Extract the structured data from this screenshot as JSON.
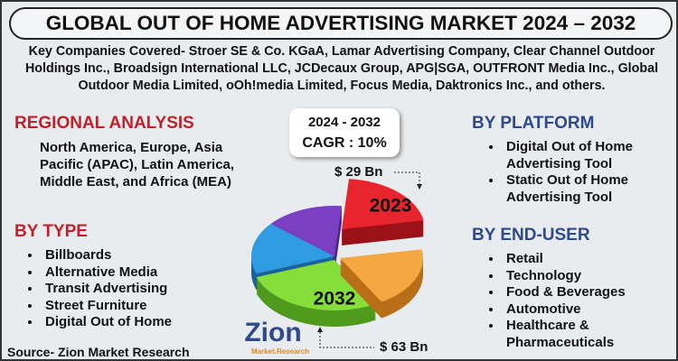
{
  "header": {
    "title": "GLOBAL OUT OF HOME ADVERTISING MARKET 2024 – 2032",
    "companies": "Key Companies Covered- Stroer SE & Co. KGaA, Lamar Advertising Company, Clear Channel Outdoor Holdings Inc., Broadsign International LLC, JCDecaux Group, APG|SGA, OUTFRONT Media Inc., Global Outdoor Media Limited, oOh!media Limited, Focus Media, Daktronics Inc., and others."
  },
  "regional": {
    "heading": "REGIONAL ANALYSIS",
    "text": "North America, Europe, Asia Pacific (APAC), Latin America, Middle East, and Africa (MEA)"
  },
  "by_type": {
    "heading": "BY TYPE",
    "items": [
      "Billboards",
      "Alternative Media",
      "Transit Advertising",
      " Street Furniture",
      "Digital Out of Home"
    ]
  },
  "center": {
    "period": "2024 - 2032",
    "cagr": "CAGR : 10%",
    "value_2023": "$ 29 Bn",
    "year_2023": "2023",
    "year_2032": "2032",
    "value_2032": "$ 63 Bn"
  },
  "by_platform": {
    "heading": "BY PLATFORM",
    "items": [
      "Digital Out of Home Advertising Tool",
      "Static Out of Home Advertising Tool"
    ]
  },
  "by_end_user": {
    "heading": "BY END-USER",
    "items": [
      "Retail",
      "Technology",
      " Food & Beverages",
      "Automotive",
      "Healthcare & Pharmaceuticals"
    ]
  },
  "source": "Source- Zion Market Research",
  "logo": {
    "name": "Zion",
    "tagline": "Market.Research"
  }
}
